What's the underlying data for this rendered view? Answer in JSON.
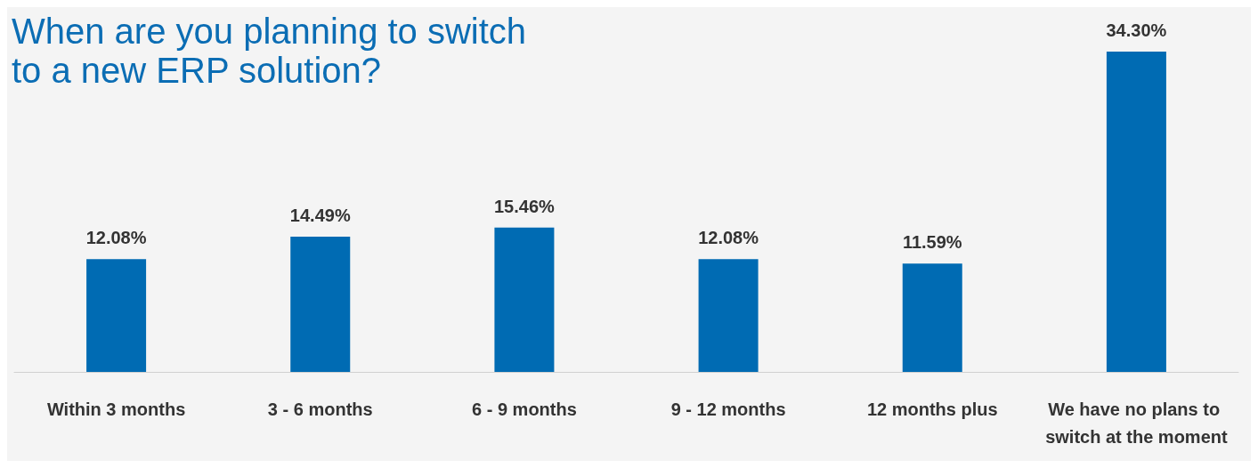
{
  "chart_data": {
    "type": "bar",
    "title": "When are you planning to switch to a new ERP solution?",
    "categories": [
      "Within 3 months",
      "3 - 6 months",
      "6 - 9 months",
      "9 - 12 months",
      "12 months plus",
      "We have no plans to switch at the moment"
    ],
    "values": [
      12.08,
      14.49,
      15.46,
      12.08,
      11.59,
      34.3
    ],
    "value_labels": [
      "12.08%",
      "14.49%",
      "15.46%",
      "12.08%",
      "11.59%",
      "34.30%"
    ],
    "color": "#006bb3",
    "ylim": [
      0,
      34.3
    ],
    "tick_labels": "x"
  }
}
